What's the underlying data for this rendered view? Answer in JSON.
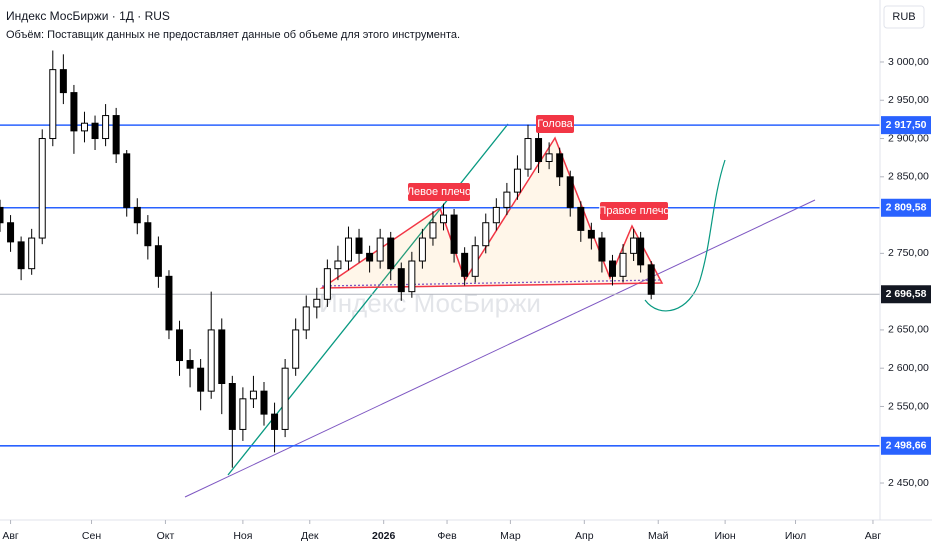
{
  "chart_data": {
    "type": "candlestick",
    "title": "Индекс МосБиржи · 1Д · RUS",
    "subtitle": "Объём: Поставщик данных не предоставляет данные об объеме для этого инструмента.",
    "currency": "RUB",
    "watermark": "Индекс МосБиржи",
    "annotations": [
      "Левое плечо",
      "Голова",
      "Правое плечо"
    ],
    "up_color": "#ffffff",
    "down_color": "#000000",
    "level_color": "#2962ff",
    "x": [
      0,
      3,
      6,
      9,
      12,
      15,
      18,
      21,
      24,
      27,
      30,
      33,
      36,
      39,
      42,
      45,
      48,
      51,
      54,
      57,
      60,
      63,
      66,
      69,
      72,
      75,
      78,
      81,
      84,
      87,
      90,
      93,
      96,
      99,
      102,
      105,
      108,
      111,
      114,
      117,
      120,
      123,
      126,
      129,
      132,
      135,
      138,
      141,
      144,
      147,
      150,
      153,
      156,
      159,
      162,
      165,
      168,
      171,
      174,
      177,
      180,
      182,
      185
    ],
    "open": [
      2810,
      2790,
      2765,
      2730,
      2770,
      2900,
      2990,
      2960,
      2910,
      2920,
      2900,
      2930,
      2880,
      2810,
      2790,
      2760,
      2720,
      2650,
      2610,
      2600,
      2570,
      2650,
      2580,
      2520,
      2560,
      2570,
      2540,
      2520,
      2600,
      2650,
      2680,
      2690,
      2730,
      2740,
      2770,
      2750,
      2740,
      2770,
      2730,
      2700,
      2740,
      2770,
      2790,
      2800,
      2750,
      2720,
      2760,
      2790,
      2810,
      2830,
      2860,
      2900,
      2870,
      2880,
      2850,
      2810,
      2780,
      2770,
      2740,
      2720,
      2750,
      2770,
      2735
    ],
    "high": [
      2820,
      2800,
      2772,
      2782,
      2912,
      3015,
      3010,
      2970,
      2935,
      2930,
      2945,
      2940,
      2885,
      2822,
      2800,
      2772,
      2728,
      2662,
      2625,
      2612,
      2700,
      2665,
      2590,
      2575,
      2590,
      2582,
      2555,
      2612,
      2665,
      2695,
      2705,
      2742,
      2760,
      2785,
      2782,
      2760,
      2782,
      2778,
      2738,
      2752,
      2782,
      2805,
      2815,
      2808,
      2758,
      2772,
      2802,
      2822,
      2842,
      2878,
      2918,
      2910,
      2895,
      2888,
      2858,
      2818,
      2790,
      2778,
      2748,
      2762,
      2782,
      2778,
      2740
    ],
    "low": [
      2778,
      2752,
      2715,
      2722,
      2762,
      2890,
      2945,
      2880,
      2895,
      2885,
      2890,
      2868,
      2798,
      2775,
      2742,
      2705,
      2638,
      2590,
      2575,
      2545,
      2560,
      2540,
      2470,
      2505,
      2548,
      2525,
      2490,
      2510,
      2590,
      2638,
      2665,
      2680,
      2715,
      2728,
      2738,
      2725,
      2730,
      2715,
      2688,
      2692,
      2730,
      2760,
      2780,
      2738,
      2708,
      2712,
      2750,
      2780,
      2800,
      2820,
      2850,
      2855,
      2860,
      2838,
      2798,
      2765,
      2755,
      2725,
      2708,
      2712,
      2740,
      2725,
      2690
    ],
    "close": [
      2790,
      2765,
      2730,
      2770,
      2900,
      2990,
      2960,
      2910,
      2920,
      2900,
      2930,
      2880,
      2810,
      2790,
      2760,
      2720,
      2650,
      2610,
      2600,
      2570,
      2650,
      2580,
      2520,
      2560,
      2570,
      2540,
      2520,
      2600,
      2650,
      2680,
      2690,
      2730,
      2740,
      2770,
      2750,
      2740,
      2770,
      2730,
      2700,
      2740,
      2770,
      2790,
      2800,
      2750,
      2720,
      2760,
      2790,
      2810,
      2830,
      2860,
      2900,
      2870,
      2880,
      2850,
      2810,
      2780,
      2770,
      2740,
      2720,
      2750,
      2770,
      2735,
      2696.58
    ],
    "xlim": [
      0,
      250
    ],
    "ylim": [
      2400,
      3050
    ],
    "xticks": [
      {
        "value": 3,
        "label": "Авг"
      },
      {
        "value": 26,
        "label": "Сен"
      },
      {
        "value": 47,
        "label": "Окт"
      },
      {
        "value": 69,
        "label": "Ноя"
      },
      {
        "value": 88,
        "label": "Дек"
      },
      {
        "value": 109,
        "label": "2026"
      },
      {
        "value": 127,
        "label": "Фев"
      },
      {
        "value": 145,
        "label": "Мар"
      },
      {
        "value": 166,
        "label": "Апр"
      },
      {
        "value": 187,
        "label": "Май"
      },
      {
        "value": 206,
        "label": "Июн"
      },
      {
        "value": 226,
        "label": "Июл"
      },
      {
        "value": 248,
        "label": "Авг"
      }
    ],
    "yticks": [
      {
        "value": 3000,
        "label": "3 000,00"
      },
      {
        "value": 2950,
        "label": "2 950,00"
      },
      {
        "value": 2900,
        "label": "2 900,00"
      },
      {
        "value": 2850,
        "label": "2 850,00"
      },
      {
        "value": 2750,
        "label": "2 750,00"
      },
      {
        "value": 2650,
        "label": "2 650,00"
      },
      {
        "value": 2600,
        "label": "2 600,00"
      },
      {
        "value": 2550,
        "label": "2 550,00"
      },
      {
        "value": 2450,
        "label": "2 450,00"
      }
    ],
    "levels": [
      {
        "value": 2917.5,
        "label": "2 917,50"
      },
      {
        "value": 2809.58,
        "label": "2 809,58"
      },
      {
        "value": 2498.66,
        "label": "2 498,66"
      }
    ],
    "last_price": {
      "value": 2696.58,
      "label": "2 696,58"
    }
  }
}
